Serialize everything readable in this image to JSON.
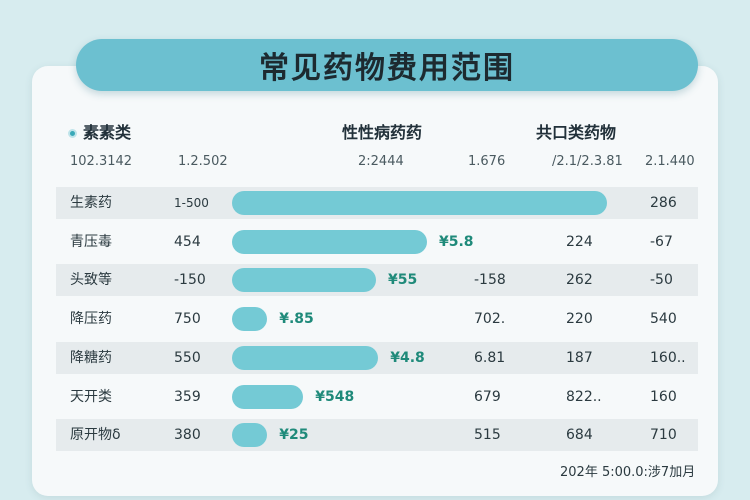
{
  "title": "常见药物费用范围",
  "headers": {
    "col1": "素素类",
    "col2": "性性病药药",
    "col3": "共口类药物"
  },
  "subheaders": [
    "102.3142",
    "1.2.502",
    "2:2444",
    "1.676",
    "/2.1/2.3.81",
    "2.1.440"
  ],
  "footer": "202年 5:00.0:涉7加月",
  "chart_data": {
    "type": "bar",
    "title": "常见药物费用范围",
    "categories": [
      "生素药",
      "青压毒",
      "头致等",
      "降压药",
      "降糖药",
      "天开类",
      "原开物δ"
    ],
    "series": [
      {
        "values": [
          500,
          260,
          192,
          47,
          195,
          95,
          47
        ]
      }
    ],
    "xlim": [
      0,
      540
    ],
    "legend": "none",
    "grid": false,
    "rows": [
      {
        "name": "生素药",
        "c1": "1-500",
        "bar_label": "",
        "c3": "",
        "c4": "",
        "c5": "286"
      },
      {
        "name": "青压毒",
        "c1": "454",
        "bar_label": "¥5.8",
        "c3": "",
        "c4": "224",
        "c5": "-67"
      },
      {
        "name": "头致等",
        "c1": "-150",
        "bar_label": "¥55",
        "c3": "-158",
        "c4": "262",
        "c5": "-50"
      },
      {
        "name": "降压药",
        "c1": "750",
        "bar_label": "¥.85",
        "c3": "702.",
        "c4": "220",
        "c5": "540"
      },
      {
        "name": "降糖药",
        "c1": "550",
        "bar_label": "¥4.8",
        "c3": "6.81",
        "c4": "187",
        "c5": "160.."
      },
      {
        "name": "天开类",
        "c1": "359",
        "bar_label": "¥548",
        "c3": "679",
        "c4": "822..",
        "c5": "160"
      },
      {
        "name": "原开物δ",
        "c1": "380",
        "bar_label": "¥25",
        "c3": "515",
        "c4": "684",
        "c5": "710"
      }
    ]
  }
}
